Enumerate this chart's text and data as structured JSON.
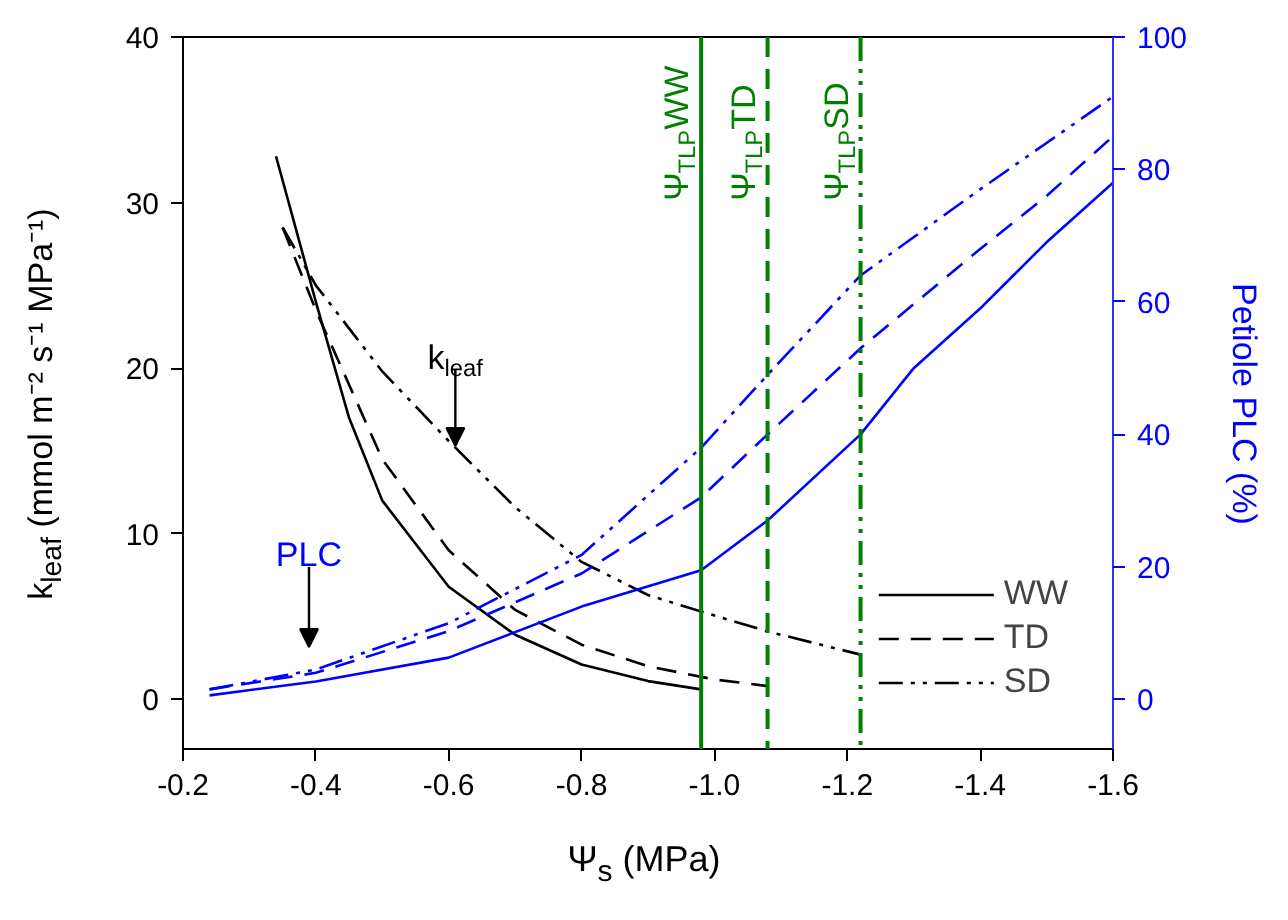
{
  "chart_data": {
    "type": "line",
    "xlabel": "Ψ$_{s}$ (MPa)",
    "ylabel": "k$_{leaf}$ (mmol m⁻² s⁻¹ MPa⁻¹)",
    "y2label": "Petiole PLC (%)",
    "xlim": [
      -0.2,
      -1.6
    ],
    "xticks": [
      -0.2,
      -0.4,
      -0.6,
      -0.8,
      {
        "value": -1,
        "label": "-1.0"
      },
      -1.2,
      -1.4,
      -1.6
    ],
    "ylim": [
      -3,
      40
    ],
    "yticks": [
      0,
      10,
      20,
      30,
      40
    ],
    "y2lim": [
      -7.5,
      100
    ],
    "y2ticks": [
      0,
      20,
      40,
      60,
      80,
      100
    ],
    "grid": false,
    "legend": "bottom right",
    "series": [
      {
        "name": "WW",
        "color": "#000000",
        "line_style": "solid",
        "x": [
          -0.34,
          -0.4,
          -0.45,
          -0.5,
          -0.6,
          -0.7,
          -0.8,
          -0.9,
          -0.98
        ],
        "values": [
          32.8,
          24,
          17,
          12,
          6.8,
          3.9,
          2.1,
          1.1,
          0.6
        ]
      },
      {
        "name": "TD",
        "color": "#000000",
        "line_style": "dashed",
        "x": [
          -0.35,
          -0.4,
          -0.45,
          -0.5,
          -0.6,
          -0.7,
          -0.8,
          -0.9,
          -1.0,
          -1.08
        ],
        "values": [
          28.5,
          23.5,
          19,
          14.5,
          9,
          5.4,
          3.3,
          2,
          1.2,
          0.8
        ]
      },
      {
        "name": "SD",
        "color": "#000000",
        "line_style": "dashdot",
        "x": [
          -0.35,
          -0.4,
          -0.5,
          -0.6,
          -0.7,
          -0.8,
          -0.9,
          -0.98,
          -1.08,
          -1.22
        ],
        "values": [
          28.5,
          25,
          19.8,
          15.6,
          11.6,
          8.3,
          6.3,
          5.3,
          4.1,
          2.7
        ]
      },
      {
        "color": "#0000ff",
        "line_style": "solid",
        "axis": "y2",
        "x": [
          -0.24,
          -0.4,
          -0.6,
          -0.8,
          -0.98,
          -1.08,
          -1.22,
          -1.3,
          -1.4,
          -1.5,
          -1.6
        ],
        "values": [
          0.6,
          2.7,
          6.3,
          14,
          19.5,
          27,
          40,
          50,
          59,
          69,
          78
        ]
      },
      {
        "color": "#0000ff",
        "line_style": "dashed",
        "axis": "y2",
        "x": [
          -0.24,
          -0.4,
          -0.6,
          -0.8,
          -0.98,
          -1.08,
          -1.22,
          -1.4,
          -1.5,
          -1.6
        ],
        "values": [
          1.5,
          4,
          10.3,
          19,
          30.5,
          40,
          53,
          68,
          76,
          85
        ]
      },
      {
        "color": "#0000ff",
        "line_style": "dashdot",
        "axis": "y2",
        "x": [
          -0.24,
          -0.4,
          -0.6,
          -0.8,
          -0.98,
          -1.08,
          -1.22,
          -1.4,
          -1.5,
          -1.6
        ],
        "values": [
          1.5,
          4.5,
          11.5,
          21.8,
          38,
          49,
          64,
          77,
          84,
          91
        ]
      }
    ],
    "ref_lines": [
      {
        "axis": "x",
        "value": -0.98,
        "label": "Ψ$_{TLP}$WW",
        "color": "#008000",
        "line_style": "solid"
      },
      {
        "axis": "x",
        "value": -1.08,
        "label": "Ψ$_{TLP}$TD",
        "color": "#008000",
        "line_style": "dashed"
      },
      {
        "axis": "x",
        "value": -1.22,
        "label": "Ψ$_{TLP}$SD",
        "color": "#008000",
        "line_style": "dashdot"
      }
    ],
    "annotations": [
      {
        "text": "k$_{leaf}$",
        "x": -0.61,
        "y": 15.3
      },
      "PLC"
    ]
  }
}
